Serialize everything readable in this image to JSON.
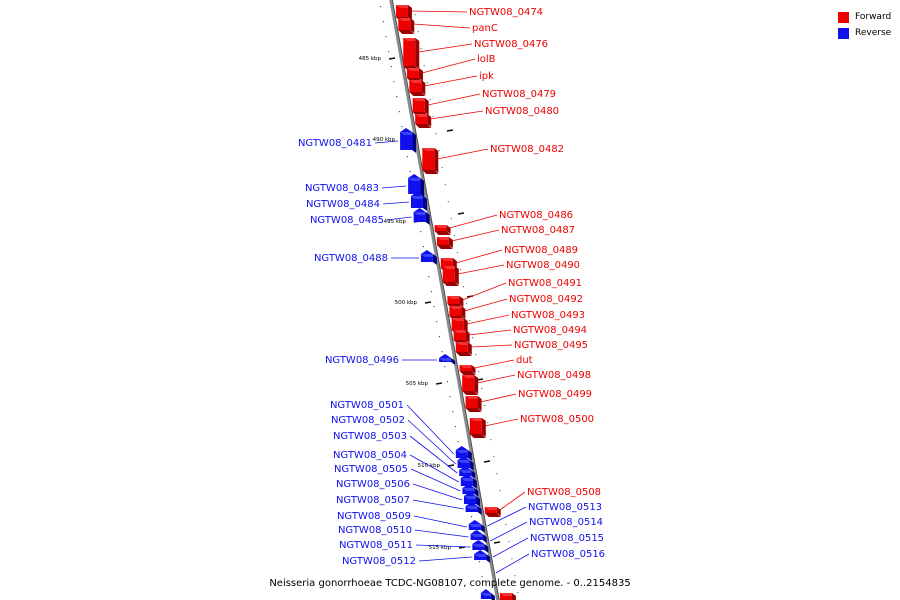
{
  "caption": "Neisseria gonorrhoeae TCDC-NG08107, complete genome. - 0..2154835",
  "legend": [
    {
      "label": "Forward",
      "color": "#ee0000"
    },
    {
      "label": "Reverse",
      "color": "#1010ee"
    }
  ],
  "kbp_ticks": [
    "485 kbp",
    "490 kbp",
    "495 kbp",
    "500 kbp",
    "505 kbp",
    "510 kbp",
    "515 kbp"
  ],
  "forward_genes": [
    "NGTW08_0474",
    "panC",
    "NGTW08_0476",
    "lolB",
    "ipk",
    "NGTW08_0479",
    "NGTW08_0480",
    "NGTW08_0482",
    "NGTW08_0486",
    "NGTW08_0487",
    "NGTW08_0489",
    "NGTW08_0490",
    "NGTW08_0491",
    "NGTW08_0492",
    "NGTW08_0493",
    "NGTW08_0494",
    "NGTW08_0495",
    "dut",
    "NGTW08_0498",
    "NGTW08_0499",
    "NGTW08_0500",
    "NGTW08_0508"
  ],
  "reverse_genes": [
    "NGTW08_0481",
    "NGTW08_0483",
    "NGTW08_0484",
    "NGTW08_0485",
    "NGTW08_0488",
    "NGTW08_0496",
    "NGTW08_0501",
    "NGTW08_0502",
    "NGTW08_0503",
    "NGTW08_0504",
    "NGTW08_0505",
    "NGTW08_0506",
    "NGTW08_0507",
    "NGTW08_0509",
    "NGTW08_0510",
    "NGTW08_0511",
    "NGTW08_0512",
    "NGTW08_0513",
    "NGTW08_0514",
    "NGTW08_0515",
    "NGTW08_0516"
  ]
}
